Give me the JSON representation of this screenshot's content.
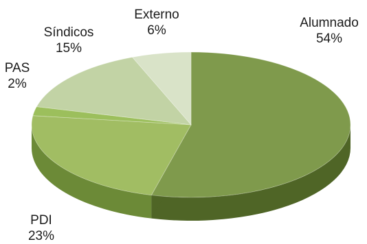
{
  "chart_data": {
    "type": "pie",
    "style": "3d",
    "categories": [
      "Alumnado",
      "PDI",
      "PAS",
      "Síndicos",
      "Externo"
    ],
    "values": [
      54,
      23,
      2,
      15,
      6
    ],
    "value_labels": [
      "54%",
      "23%",
      "2%",
      "15%",
      "6%"
    ],
    "colors": {
      "Alumnado": "#7f9a4c",
      "PDI": "#a1bd63",
      "PAS": "#9cbf5c",
      "Síndicos": "#c2d3a5",
      "Externo": "#d9e3c8"
    },
    "side_colors": {
      "Alumnado": "#4f6526",
      "PDI": "#6c8a37",
      "PAS": "#6e9134",
      "Síndicos": "#93a97a",
      "Externo": "#a8b898"
    },
    "legend": "none",
    "title": ""
  }
}
